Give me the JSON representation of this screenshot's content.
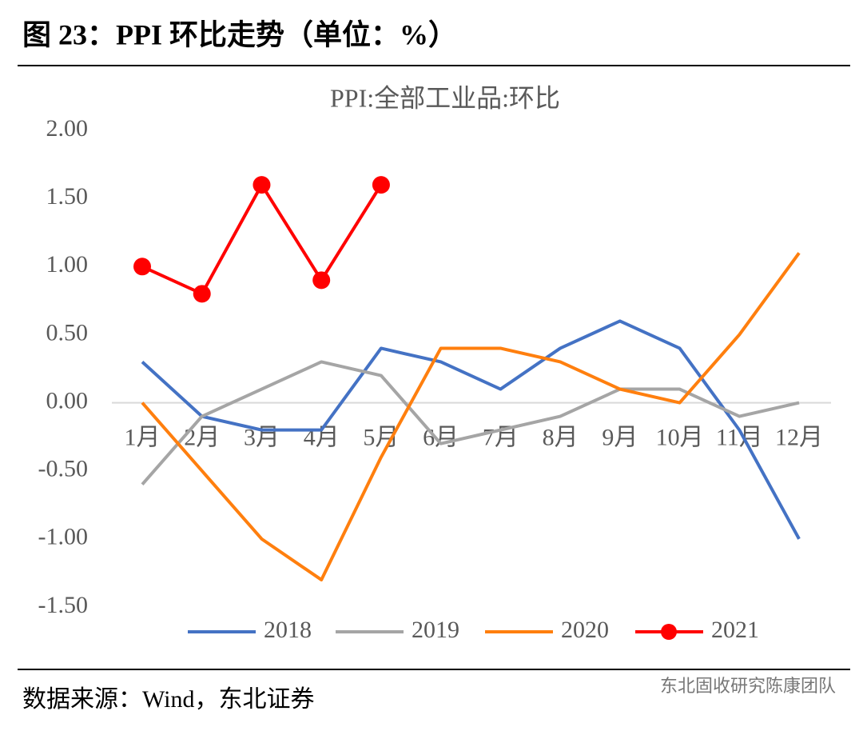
{
  "header": {
    "title": "图 23：PPI 环比走势（单位：%）"
  },
  "chart_data": {
    "type": "line",
    "title": "PPI:全部工业品:环比",
    "categories": [
      "1月",
      "2月",
      "3月",
      "4月",
      "5月",
      "6月",
      "7月",
      "8月",
      "9月",
      "10月",
      "11月",
      "12月"
    ],
    "series": [
      {
        "name": "2018",
        "color": "#4472c4",
        "values": [
          0.3,
          -0.1,
          -0.2,
          -0.2,
          0.4,
          0.3,
          0.1,
          0.4,
          0.6,
          0.4,
          -0.2,
          -1.0
        ]
      },
      {
        "name": "2019",
        "color": "#a5a5a5",
        "values": [
          -0.6,
          -0.1,
          0.1,
          0.3,
          0.2,
          -0.3,
          -0.2,
          -0.1,
          0.1,
          0.1,
          -0.1,
          0.0
        ]
      },
      {
        "name": "2020",
        "color": "#ff7f0e",
        "values": [
          0.0,
          -0.5,
          -1.0,
          -1.3,
          -0.4,
          0.4,
          0.4,
          0.3,
          0.1,
          0.0,
          0.5,
          1.1
        ]
      },
      {
        "name": "2021",
        "color": "#ff0000",
        "markers": true,
        "values": [
          1.0,
          0.8,
          1.6,
          0.9,
          1.6,
          null,
          null,
          null,
          null,
          null,
          null,
          null
        ]
      }
    ],
    "ylim": [
      -1.5,
      2.0
    ],
    "yticks": [
      {
        "value": 2.0,
        "label": "2.00"
      },
      {
        "value": 1.5,
        "label": "1.50"
      },
      {
        "value": 1.0,
        "label": "1.00"
      },
      {
        "value": 0.5,
        "label": "0.50"
      },
      {
        "value": 0,
        "label": "0.00"
      },
      {
        "value": -0.5,
        "label": "-0.50"
      },
      {
        "value": -1.0,
        "label": "-1.00"
      },
      {
        "value": -1.5,
        "label": "-1.50"
      }
    ],
    "legend": "bottom"
  },
  "footer": {
    "source": "数据来源：Wind，东北证券",
    "watermark": "东北固收研究陈康团队"
  }
}
